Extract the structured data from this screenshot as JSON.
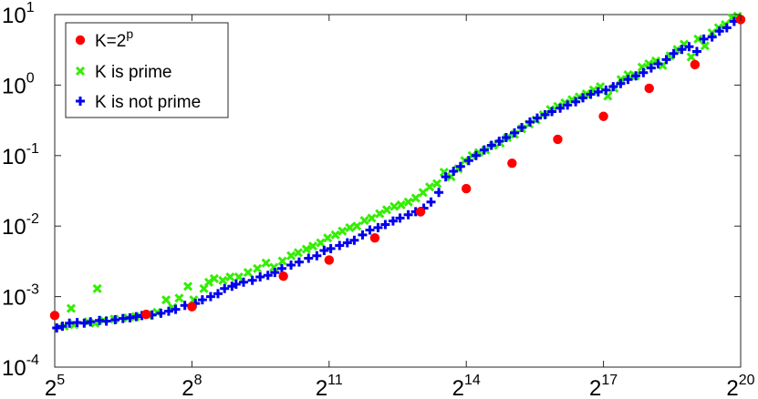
{
  "chart_data": {
    "type": "scatter",
    "xscale": "log2",
    "yscale": "log10",
    "xlim": [
      32,
      1048576
    ],
    "ylim": [
      0.0001,
      10
    ],
    "x_ticks": [
      {
        "value": 32,
        "base": "2",
        "exp": "5"
      },
      {
        "value": 256,
        "base": "2",
        "exp": "8"
      },
      {
        "value": 2048,
        "base": "2",
        "exp": "11"
      },
      {
        "value": 16384,
        "base": "2",
        "exp": "14"
      },
      {
        "value": 131072,
        "base": "2",
        "exp": "17"
      },
      {
        "value": 1048576,
        "base": "2",
        "exp": "20"
      }
    ],
    "y_ticks": [
      {
        "value": 0.0001,
        "base": "10",
        "exp": "-4"
      },
      {
        "value": 0.001,
        "base": "10",
        "exp": "-3"
      },
      {
        "value": 0.01,
        "base": "10",
        "exp": "-2"
      },
      {
        "value": 0.1,
        "base": "10",
        "exp": "-1"
      },
      {
        "value": 1,
        "base": "10",
        "exp": "0"
      },
      {
        "value": 10,
        "base": "10",
        "exp": "1"
      }
    ],
    "legend_position": "top-left",
    "grid": false,
    "series": [
      {
        "name_base": "K=2",
        "name_sup": "p",
        "color": "#ff0000",
        "marker": "circle",
        "points": [
          [
            32,
            0.00054
          ],
          [
            128,
            0.00056
          ],
          [
            256,
            0.00072
          ],
          [
            1024,
            0.00195
          ],
          [
            2048,
            0.0033
          ],
          [
            4096,
            0.0068
          ],
          [
            8192,
            0.016
          ],
          [
            16384,
            0.034
          ],
          [
            32768,
            0.078
          ],
          [
            65536,
            0.17
          ],
          [
            131072,
            0.36
          ],
          [
            262144,
            0.9
          ],
          [
            524288,
            1.95
          ],
          [
            1048576,
            8.5
          ]
        ]
      },
      {
        "name": "K is prime",
        "color": "#33ee00",
        "marker": "x",
        "points": [
          [
            37,
            0.00038
          ],
          [
            41,
            0.00068
          ],
          [
            43,
            0.0004
          ],
          [
            53,
            0.00044
          ],
          [
            59,
            0.00042
          ],
          [
            61,
            0.0013
          ],
          [
            67,
            0.00046
          ],
          [
            79,
            0.00048
          ],
          [
            97,
            0.0005
          ],
          [
            109,
            0.00052
          ],
          [
            131,
            0.00055
          ],
          [
            151,
            0.0006
          ],
          [
            173,
            0.0009
          ],
          [
            191,
            0.0007
          ],
          [
            211,
            0.00095
          ],
          [
            241,
            0.0014
          ],
          [
            263,
            0.0009
          ],
          [
            307,
            0.0013
          ],
          [
            331,
            0.0016
          ],
          [
            359,
            0.0018
          ],
          [
            409,
            0.0017
          ],
          [
            457,
            0.0019
          ],
          [
            521,
            0.0019
          ],
          [
            599,
            0.0022
          ],
          [
            691,
            0.0025
          ],
          [
            787,
            0.003
          ],
          [
            887,
            0.0026
          ],
          [
            1009,
            0.0032
          ],
          [
            1151,
            0.0038
          ],
          [
            1283,
            0.0042
          ],
          [
            1451,
            0.0047
          ],
          [
            1601,
            0.0052
          ],
          [
            1801,
            0.0058
          ],
          [
            2003,
            0.0068
          ],
          [
            2251,
            0.0075
          ],
          [
            2503,
            0.0085
          ],
          [
            2801,
            0.0095
          ],
          [
            3121,
            0.01
          ],
          [
            3499,
            0.012
          ],
          [
            3907,
            0.013
          ],
          [
            4409,
            0.015
          ],
          [
            4903,
            0.017
          ],
          [
            5501,
            0.019
          ],
          [
            6101,
            0.02
          ],
          [
            6803,
            0.022
          ],
          [
            7607,
            0.025
          ],
          [
            8501,
            0.03
          ],
          [
            9403,
            0.036
          ],
          [
            10501,
            0.04
          ],
          [
            11701,
            0.058
          ],
          [
            13001,
            0.05
          ],
          [
            14503,
            0.065
          ],
          [
            16001,
            0.085
          ],
          [
            17903,
            0.1
          ],
          [
            19801,
            0.11
          ],
          [
            22003,
            0.12
          ],
          [
            24593,
            0.14
          ],
          [
            27397,
            0.15
          ],
          [
            30497,
            0.18
          ],
          [
            33997,
            0.2
          ],
          [
            37997,
            0.24
          ],
          [
            42397,
            0.28
          ],
          [
            47207,
            0.32
          ],
          [
            52697,
            0.38
          ],
          [
            58603,
            0.45
          ],
          [
            65537,
            0.5
          ],
          [
            73009,
            0.56
          ],
          [
            81401,
            0.62
          ],
          [
            90803,
            0.68
          ],
          [
            101009,
            0.75
          ],
          [
            112997,
            0.85
          ],
          [
            125003,
            0.95
          ],
          [
            139999,
            0.7
          ],
          [
            154001,
            0.9
          ],
          [
            171001,
            1.2
          ],
          [
            190001,
            1.4
          ],
          [
            211997,
            1.35
          ],
          [
            235003,
            1.8
          ],
          [
            261001,
            2.0
          ],
          [
            290011,
            2.2
          ],
          [
            321007,
            1.9
          ],
          [
            359999,
            2.6
          ],
          [
            401003,
            3.2
          ],
          [
            445001,
            3.8
          ],
          [
            495001,
            2.5
          ],
          [
            550007,
            4.5
          ],
          [
            610003,
            3.6
          ],
          [
            680003,
            5.5
          ],
          [
            750001,
            6.5
          ],
          [
            830003,
            7.2
          ],
          [
            920011,
            9.0
          ],
          [
            1000003,
            9.5
          ]
        ]
      },
      {
        "name": "K is not prime",
        "color": "#0000ee",
        "marker": "plus",
        "points": [
          [
            33,
            0.00036
          ],
          [
            36,
            0.00038
          ],
          [
            40,
            0.00042
          ],
          [
            45,
            0.00043
          ],
          [
            50,
            0.00042
          ],
          [
            55,
            0.00044
          ],
          [
            63,
            0.00046
          ],
          [
            70,
            0.00045
          ],
          [
            80,
            0.00047
          ],
          [
            90,
            0.00049
          ],
          [
            100,
            0.0005
          ],
          [
            110,
            0.00052
          ],
          [
            120,
            0.00054
          ],
          [
            140,
            0.00055
          ],
          [
            160,
            0.00058
          ],
          [
            180,
            0.00062
          ],
          [
            200,
            0.00066
          ],
          [
            230,
            0.00075
          ],
          [
            270,
            0.0008
          ],
          [
            300,
            0.0009
          ],
          [
            340,
            0.001
          ],
          [
            380,
            0.0011
          ],
          [
            420,
            0.0013
          ],
          [
            470,
            0.0014
          ],
          [
            500,
            0.0015
          ],
          [
            560,
            0.0016
          ],
          [
            640,
            0.0017
          ],
          [
            720,
            0.0019
          ],
          [
            810,
            0.002
          ],
          [
            900,
            0.0022
          ],
          [
            1000,
            0.0025
          ],
          [
            1150,
            0.0028
          ],
          [
            1300,
            0.0031
          ],
          [
            1500,
            0.0035
          ],
          [
            1700,
            0.0038
          ],
          [
            1900,
            0.0045
          ],
          [
            2100,
            0.0048
          ],
          [
            2400,
            0.0053
          ],
          [
            2700,
            0.0058
          ],
          [
            3000,
            0.0063
          ],
          [
            3400,
            0.0075
          ],
          [
            3800,
            0.0088
          ],
          [
            4300,
            0.0095
          ],
          [
            4800,
            0.0105
          ],
          [
            5400,
            0.0118
          ],
          [
            6000,
            0.013
          ],
          [
            6800,
            0.0145
          ],
          [
            7600,
            0.016
          ],
          [
            8600,
            0.018
          ],
          [
            9600,
            0.022
          ],
          [
            10800,
            0.03
          ],
          [
            12000,
            0.05
          ],
          [
            13500,
            0.06
          ],
          [
            15000,
            0.07
          ],
          [
            17000,
            0.085
          ],
          [
            19000,
            0.1
          ],
          [
            21500,
            0.12
          ],
          [
            24000,
            0.14
          ],
          [
            27000,
            0.16
          ],
          [
            30000,
            0.18
          ],
          [
            34000,
            0.21
          ],
          [
            38000,
            0.25
          ],
          [
            43000,
            0.3
          ],
          [
            48000,
            0.34
          ],
          [
            54000,
            0.38
          ],
          [
            60000,
            0.42
          ],
          [
            68000,
            0.47
          ],
          [
            76000,
            0.52
          ],
          [
            86000,
            0.58
          ],
          [
            96000,
            0.66
          ],
          [
            108000,
            0.74
          ],
          [
            121000,
            0.8
          ],
          [
            136000,
            0.85
          ],
          [
            152000,
            0.95
          ],
          [
            170000,
            1.05
          ],
          [
            190000,
            1.2
          ],
          [
            214000,
            1.35
          ],
          [
            240000,
            1.5
          ],
          [
            270000,
            1.75
          ],
          [
            300000,
            2.0
          ],
          [
            340000,
            2.3
          ],
          [
            380000,
            2.8
          ],
          [
            430000,
            3.2
          ],
          [
            480000,
            3.5
          ],
          [
            540000,
            3.0
          ],
          [
            600000,
            4.5
          ],
          [
            680000,
            4.8
          ],
          [
            760000,
            5.8
          ],
          [
            850000,
            6.5
          ],
          [
            950000,
            8.0
          ]
        ]
      }
    ]
  }
}
